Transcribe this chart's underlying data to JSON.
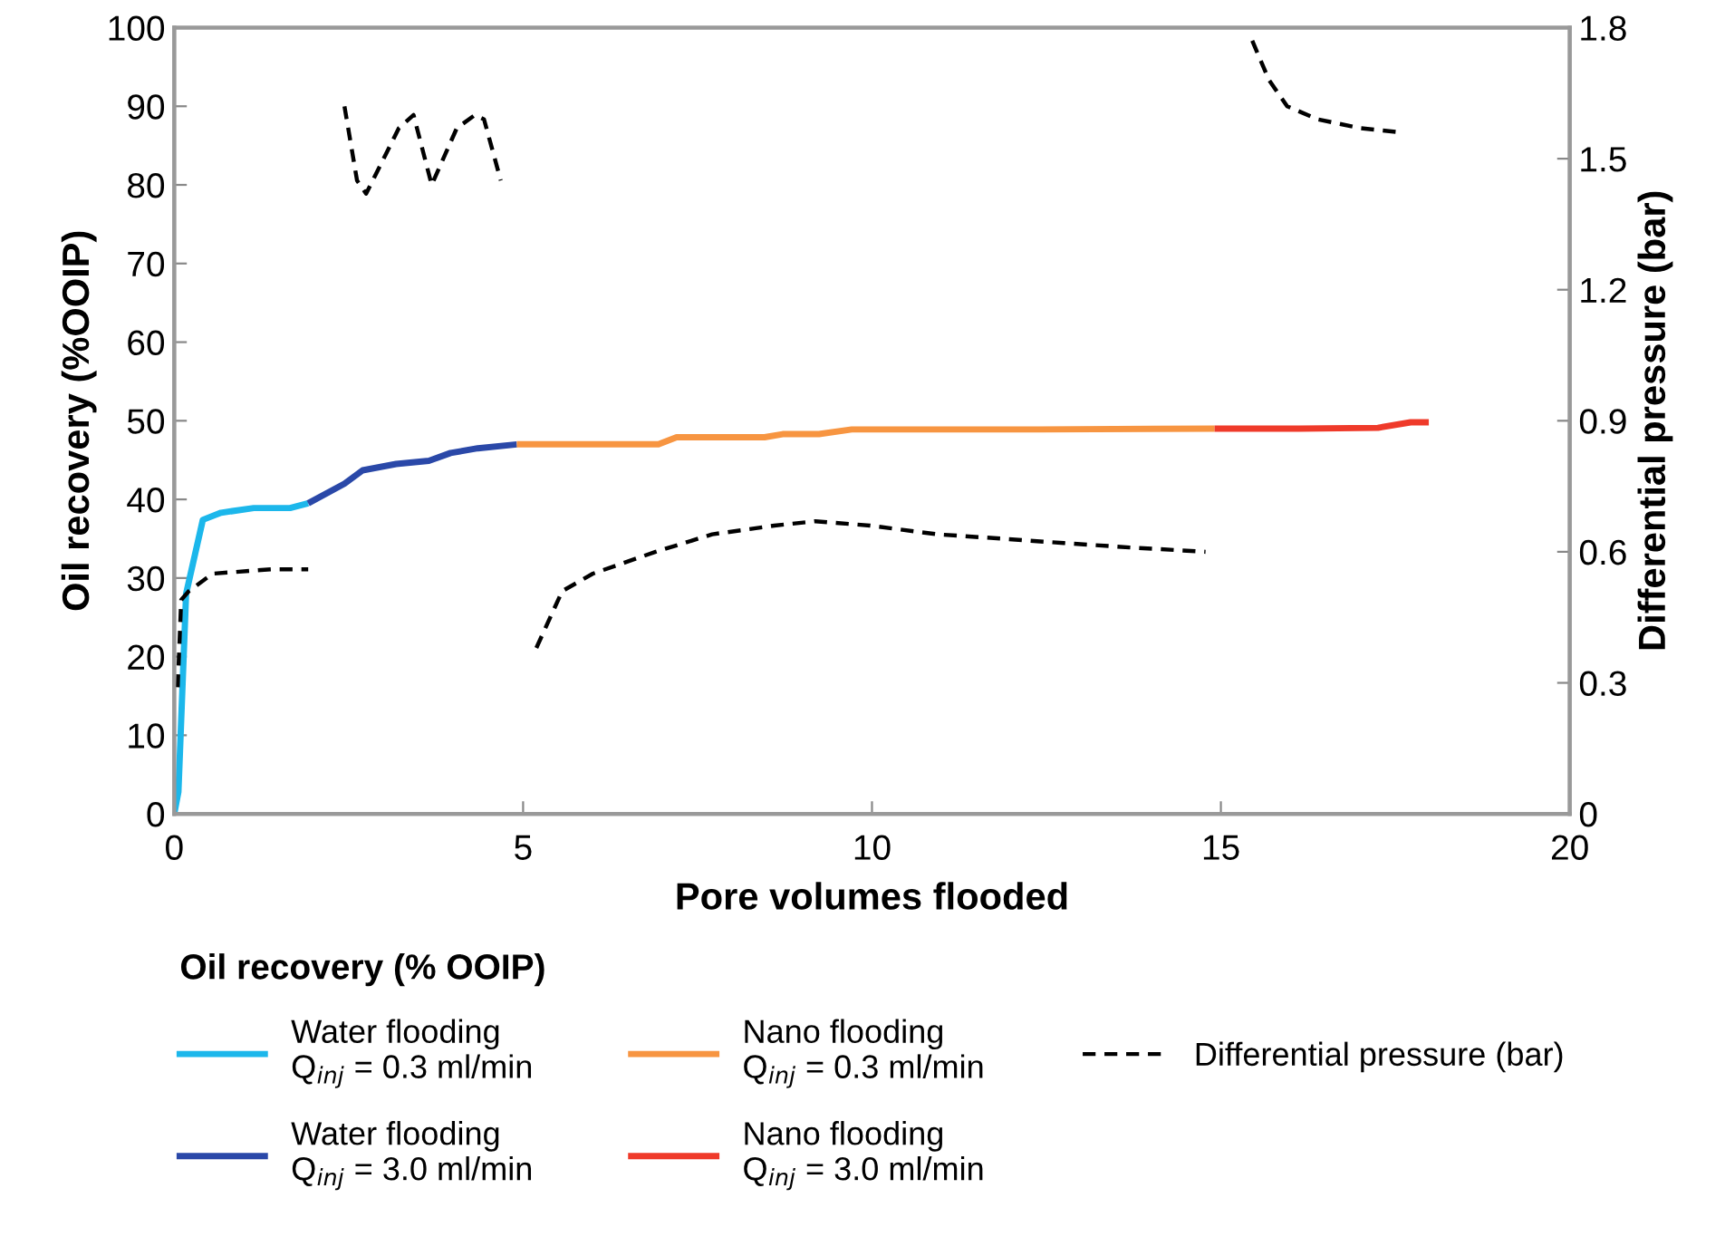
{
  "chart_data": {
    "type": "line",
    "xlabel": "Pore volumes flooded",
    "ylabel": "Oil recovery (%OOIP)",
    "y2label": "Differential pressure (bar)",
    "legend_title": "Oil recovery (% OOIP)",
    "legend": "bottom",
    "grid": false,
    "marker": "none",
    "xlim": [
      0,
      20
    ],
    "xticks": [
      0,
      5,
      10,
      15,
      20
    ],
    "ylim": [
      0,
      100
    ],
    "yticks": [
      0,
      10,
      20,
      30,
      40,
      50,
      60,
      70,
      80,
      90,
      100
    ],
    "y2lim": [
      0,
      1.8
    ],
    "y2ticks": [
      0,
      0.3,
      0.6,
      0.9,
      1.2,
      1.5,
      1.8
    ],
    "series": [
      {
        "name": "Water flooding\nQ$_{inj}$ = 0.3 ml/min",
        "color": "#1cb7eb",
        "line_style": "solid",
        "x": [
          0,
          0.06,
          0.17,
          0.41,
          0.67,
          1.14,
          1.66,
          1.92
        ],
        "values": [
          0,
          2.8,
          28,
          37.4,
          38.3,
          38.9,
          38.9,
          39.5
        ]
      },
      {
        "name": "Water flooding\nQ$_{inj}$ = 3.0 ml/min",
        "color": "#2a48a8",
        "line_style": "solid",
        "x": [
          1.92,
          2.44,
          2.7,
          3.18,
          3.65,
          3.96,
          4.35,
          4.91
        ],
        "values": [
          39.5,
          42.0,
          43.7,
          44.5,
          44.9,
          45.9,
          46.5,
          47.0
        ]
      },
      {
        "name": "Nano flooding\nQ$_{inj}$ = 0.3 ml/min",
        "color": "#f79541",
        "line_style": "solid",
        "x": [
          4.91,
          6.94,
          7.2,
          8.46,
          8.72,
          9.24,
          9.71,
          12.39,
          14.91
        ],
        "values": [
          47.0,
          47.0,
          47.9,
          47.9,
          48.3,
          48.3,
          48.9,
          48.9,
          49.0
        ]
      },
      {
        "name": "Nano flooding\nQ$_{inj}$ = 3.0 ml/min",
        "color": "#ef3a2a",
        "line_style": "solid",
        "x": [
          14.91,
          16.12,
          17.25,
          17.72,
          17.98
        ],
        "values": [
          49.0,
          49.0,
          49.1,
          49.8,
          49.8
        ]
      },
      {
        "name": "Differential pressure (bar)",
        "color": "#000000",
        "line_style": "dashed",
        "axis": "y2",
        "x": [
          0.05,
          0.1,
          0.21,
          0.55,
          1.4,
          1.92,
          2.2,
          2.44,
          2.62,
          2.75,
          3.22,
          3.43,
          3.69,
          4.05,
          4.31,
          4.44,
          4.68,
          4.95,
          5.19,
          5.56,
          6.0,
          6.9,
          7.71,
          8.6,
          9.19,
          9.97,
          10.94,
          11.87,
          12.75,
          13.69,
          14.78,
          15.1,
          15.45,
          15.69,
          15.95,
          16.39,
          16.99,
          17.58
        ],
        "values": [
          0.29,
          0.49,
          0.51,
          0.55,
          0.56,
          0.56,
          null,
          1.62,
          1.45,
          1.42,
          1.57,
          1.6,
          1.44,
          1.57,
          1.6,
          1.59,
          1.45,
          null,
          0.38,
          0.51,
          0.55,
          0.6,
          0.64,
          0.66,
          0.67,
          0.66,
          0.64,
          0.63,
          0.62,
          0.61,
          0.6,
          null,
          1.77,
          1.68,
          1.62,
          1.59,
          1.57,
          1.56
        ]
      }
    ]
  }
}
